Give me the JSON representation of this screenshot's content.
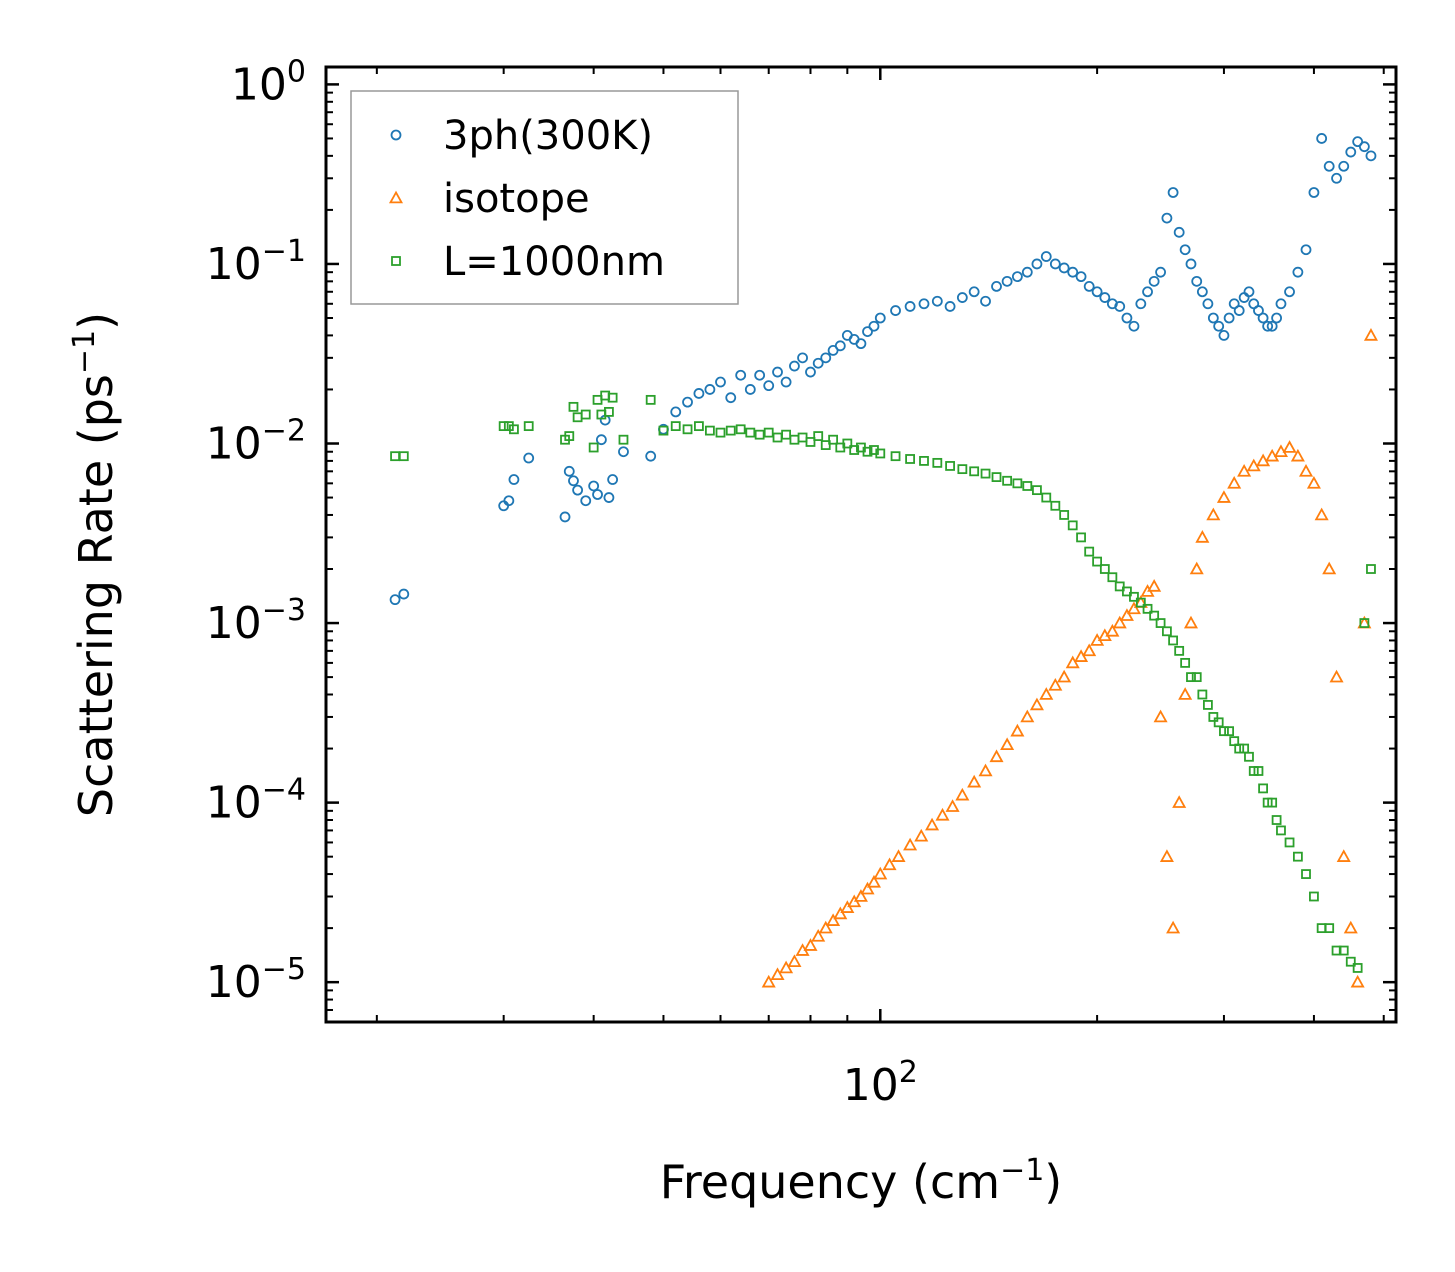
{
  "chart_data": {
    "type": "scatter",
    "xscale": "log",
    "yscale": "log",
    "xlim": [
      17,
      520
    ],
    "ylim": [
      6e-06,
      1.25
    ],
    "xlabel": "Frequency (cm",
    "xlabel_sup": "−1",
    "xlabel_end": ")",
    "ylabel": "Scattering Rate (ps",
    "ylabel_sup": "−1",
    "ylabel_end": ")",
    "x_ticks": [
      {
        "base": "10",
        "exp": "2",
        "value": 100
      }
    ],
    "y_ticks": [
      {
        "base": "10",
        "exp": "0",
        "value": 1
      },
      {
        "base": "10",
        "exp": "−1",
        "value": 0.1
      },
      {
        "base": "10",
        "exp": "−2",
        "value": 0.01
      },
      {
        "base": "10",
        "exp": "−3",
        "value": 0.001
      },
      {
        "base": "10",
        "exp": "−4",
        "value": 0.0001
      },
      {
        "base": "10",
        "exp": "−5",
        "value": 1e-05
      }
    ],
    "legend_position": "top-left",
    "series": [
      {
        "name": "3ph(300K)",
        "marker": "circle",
        "color": "#1f77b4",
        "x": [
          21.2,
          21.8,
          30,
          30.5,
          31,
          32.5,
          36.5,
          37,
          37.5,
          38,
          39,
          40,
          40.5,
          41,
          41.5,
          42,
          42.5,
          44,
          48,
          50,
          52,
          54,
          56,
          58,
          60,
          62,
          64,
          66,
          68,
          70,
          72,
          74,
          76,
          78,
          80,
          82,
          84,
          86,
          88,
          90,
          92,
          94,
          96,
          98,
          100,
          105,
          110,
          115,
          120,
          125,
          130,
          135,
          140,
          145,
          150,
          155,
          160,
          165,
          170,
          175,
          180,
          185,
          190,
          195,
          200,
          205,
          210,
          215,
          220,
          225,
          230,
          235,
          240,
          245,
          250,
          255,
          260,
          265,
          270,
          275,
          280,
          285,
          290,
          295,
          300,
          305,
          310,
          315,
          320,
          325,
          330,
          335,
          340,
          345,
          350,
          355,
          360,
          370,
          380,
          390,
          400,
          410,
          420,
          430,
          440,
          450,
          460,
          470,
          480
        ],
        "y": [
          0.00135,
          0.00145,
          0.0045,
          0.0048,
          0.0063,
          0.0083,
          0.0039,
          0.007,
          0.0062,
          0.0055,
          0.0048,
          0.0058,
          0.0052,
          0.0105,
          0.0135,
          0.005,
          0.0063,
          0.009,
          0.0085,
          0.012,
          0.015,
          0.017,
          0.019,
          0.02,
          0.022,
          0.018,
          0.024,
          0.02,
          0.024,
          0.021,
          0.025,
          0.022,
          0.027,
          0.03,
          0.025,
          0.028,
          0.03,
          0.033,
          0.035,
          0.04,
          0.038,
          0.036,
          0.042,
          0.045,
          0.05,
          0.055,
          0.058,
          0.06,
          0.062,
          0.058,
          0.065,
          0.07,
          0.062,
          0.075,
          0.08,
          0.085,
          0.09,
          0.1,
          0.11,
          0.1,
          0.095,
          0.09,
          0.085,
          0.075,
          0.07,
          0.065,
          0.06,
          0.058,
          0.05,
          0.045,
          0.06,
          0.07,
          0.08,
          0.09,
          0.18,
          0.25,
          0.15,
          0.12,
          0.1,
          0.08,
          0.07,
          0.06,
          0.05,
          0.045,
          0.04,
          0.05,
          0.06,
          0.055,
          0.065,
          0.07,
          0.06,
          0.055,
          0.05,
          0.045,
          0.045,
          0.05,
          0.06,
          0.07,
          0.09,
          0.12,
          0.25,
          0.5,
          0.35,
          0.3,
          0.35,
          0.42,
          0.48,
          0.45,
          0.4
        ]
      },
      {
        "name": "isotope",
        "marker": "triangle",
        "color": "#ff7f0e",
        "x": [
          70,
          72,
          74,
          76,
          78,
          80,
          82,
          84,
          86,
          88,
          90,
          92,
          94,
          96,
          98,
          100,
          103,
          106,
          110,
          114,
          118,
          122,
          126,
          130,
          135,
          140,
          145,
          150,
          155,
          160,
          165,
          170,
          175,
          180,
          185,
          190,
          195,
          200,
          205,
          210,
          215,
          220,
          225,
          230,
          235,
          240,
          245,
          250,
          255,
          260,
          265,
          270,
          275,
          280,
          290,
          300,
          310,
          320,
          330,
          340,
          350,
          360,
          370,
          380,
          390,
          400,
          410,
          420,
          430,
          440,
          450,
          460,
          470,
          480
        ],
        "y": [
          1e-05,
          1.1e-05,
          1.2e-05,
          1.3e-05,
          1.5e-05,
          1.6e-05,
          1.8e-05,
          2e-05,
          2.2e-05,
          2.4e-05,
          2.6e-05,
          2.8e-05,
          3e-05,
          3.3e-05,
          3.6e-05,
          4e-05,
          4.5e-05,
          5e-05,
          5.8e-05,
          6.5e-05,
          7.5e-05,
          8.5e-05,
          9.5e-05,
          0.00011,
          0.00013,
          0.00015,
          0.00018,
          0.00021,
          0.00025,
          0.0003,
          0.00035,
          0.0004,
          0.00045,
          0.0005,
          0.0006,
          0.00065,
          0.0007,
          0.0008,
          0.00085,
          0.0009,
          0.001,
          0.0011,
          0.0012,
          0.0013,
          0.0015,
          0.0016,
          0.0003,
          5e-05,
          2e-05,
          0.0001,
          0.0004,
          0.001,
          0.002,
          0.003,
          0.004,
          0.005,
          0.006,
          0.007,
          0.0075,
          0.008,
          0.0085,
          0.009,
          0.0095,
          0.0085,
          0.007,
          0.006,
          0.004,
          0.002,
          0.0005,
          5e-05,
          2e-05,
          1e-05,
          0.001,
          0.04
        ]
      },
      {
        "name": "L=1000nm",
        "marker": "square",
        "color": "#2ca02c",
        "x": [
          21.2,
          21.8,
          30,
          30.5,
          31,
          32.5,
          36.5,
          37,
          37.5,
          38,
          39,
          40,
          40.5,
          41,
          41.5,
          42,
          42.5,
          44,
          48,
          50,
          52,
          54,
          56,
          58,
          60,
          62,
          64,
          66,
          68,
          70,
          72,
          74,
          76,
          78,
          80,
          82,
          84,
          86,
          88,
          90,
          92,
          94,
          96,
          98,
          100,
          105,
          110,
          115,
          120,
          125,
          130,
          135,
          140,
          145,
          150,
          155,
          160,
          165,
          170,
          175,
          180,
          185,
          190,
          195,
          200,
          205,
          210,
          215,
          220,
          225,
          230,
          235,
          240,
          245,
          250,
          255,
          260,
          265,
          270,
          275,
          280,
          285,
          290,
          295,
          300,
          305,
          310,
          315,
          320,
          325,
          330,
          335,
          340,
          345,
          350,
          355,
          360,
          370,
          380,
          390,
          400,
          410,
          420,
          430,
          440,
          450,
          460,
          470,
          480
        ],
        "y": [
          0.0085,
          0.0085,
          0.0125,
          0.0125,
          0.012,
          0.0125,
          0.0105,
          0.011,
          0.016,
          0.014,
          0.0145,
          0.0095,
          0.0175,
          0.0145,
          0.0185,
          0.015,
          0.018,
          0.0105,
          0.0175,
          0.0118,
          0.0125,
          0.012,
          0.0125,
          0.0118,
          0.0115,
          0.0118,
          0.012,
          0.0115,
          0.0112,
          0.0115,
          0.0108,
          0.0112,
          0.0105,
          0.0108,
          0.0102,
          0.011,
          0.0098,
          0.0105,
          0.0095,
          0.01,
          0.0092,
          0.0095,
          0.009,
          0.0092,
          0.0088,
          0.0085,
          0.0082,
          0.008,
          0.0078,
          0.0075,
          0.0072,
          0.007,
          0.0068,
          0.0065,
          0.0062,
          0.006,
          0.0058,
          0.0055,
          0.005,
          0.0045,
          0.004,
          0.0035,
          0.003,
          0.0025,
          0.0022,
          0.002,
          0.0018,
          0.0016,
          0.0015,
          0.0014,
          0.0013,
          0.0012,
          0.0011,
          0.001,
          0.0009,
          0.0008,
          0.0007,
          0.0006,
          0.0005,
          0.0005,
          0.0004,
          0.00035,
          0.0003,
          0.00028,
          0.00025,
          0.00025,
          0.00022,
          0.0002,
          0.0002,
          0.00018,
          0.00015,
          0.00015,
          0.00012,
          0.0001,
          0.0001,
          8e-05,
          7e-05,
          6e-05,
          5e-05,
          4e-05,
          3e-05,
          2e-05,
          2e-05,
          1.5e-05,
          1.5e-05,
          1.3e-05,
          1.2e-05,
          0.001,
          0.002
        ]
      }
    ]
  }
}
